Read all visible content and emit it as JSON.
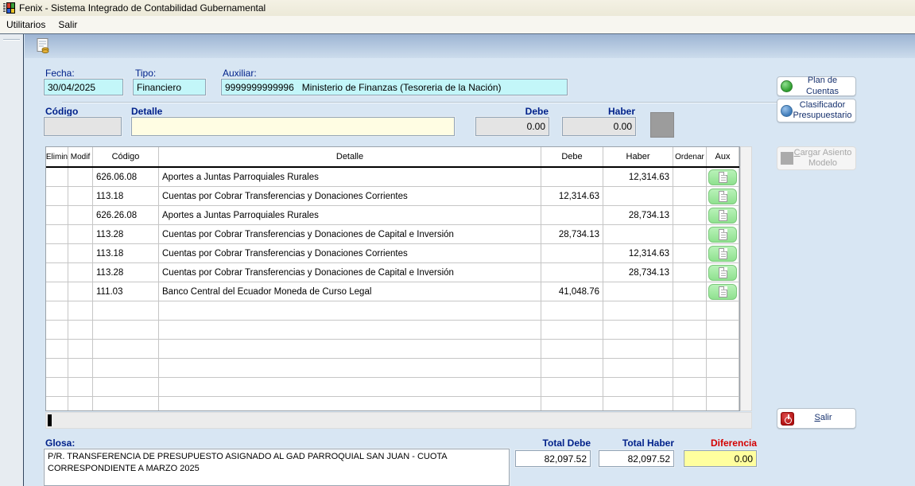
{
  "window": {
    "title": "Fenix - Sistema Integrado de Contabilidad Gubernamental"
  },
  "menu": {
    "items": [
      "Utilitarios",
      "Salir"
    ]
  },
  "form": {
    "fecha": {
      "label": "Fecha:",
      "value": "30/04/2025"
    },
    "tipo": {
      "label": "Tipo:",
      "value": "Financiero"
    },
    "auxiliar": {
      "label": "Auxiliar:",
      "value": "9999999999996   Ministerio de Finanzas (Tesoreria de la Nación)"
    },
    "codigo": {
      "label": "Código",
      "value": ""
    },
    "detalle": {
      "label": "Detalle",
      "value": ""
    },
    "debe": {
      "label": "Debe",
      "value": "0.00"
    },
    "haber": {
      "label": "Haber",
      "value": "0.00"
    }
  },
  "table": {
    "headers": [
      "Elimin",
      "Modif",
      "Código",
      "Detalle",
      "Debe",
      "Haber",
      "Ordenar",
      "Aux"
    ],
    "rows": [
      {
        "codigo": "626.06.08",
        "detalle": "Aportes a Juntas Parroquiales Rurales",
        "debe": "",
        "haber": "12,314.63"
      },
      {
        "codigo": "113.18",
        "detalle": "Cuentas por Cobrar Transferencias y Donaciones Corrientes",
        "debe": "12,314.63",
        "haber": ""
      },
      {
        "codigo": "626.26.08",
        "detalle": "Aportes a Juntas Parroquiales Rurales",
        "debe": "",
        "haber": "28,734.13"
      },
      {
        "codigo": "113.28",
        "detalle": "Cuentas por Cobrar Transferencias y Donaciones de Capital e Inversión",
        "debe": "28,734.13",
        "haber": ""
      },
      {
        "codigo": "113.18",
        "detalle": "Cuentas por Cobrar Transferencias y Donaciones Corrientes",
        "debe": "",
        "haber": "12,314.63"
      },
      {
        "codigo": "113.28",
        "detalle": "Cuentas por Cobrar Transferencias y Donaciones de Capital e Inversión",
        "debe": "",
        "haber": "28,734.13"
      },
      {
        "codigo": "111.03",
        "detalle": "Banco Central del Ecuador Moneda de Curso Legal",
        "debe": "41,048.76",
        "haber": ""
      }
    ],
    "empty_row_count": 6
  },
  "side_buttons": {
    "plan_cuentas": {
      "label": "Plan de Cuentas"
    },
    "clasificador": {
      "label": "Clasificador Presupuestario"
    },
    "cargar_modelo": {
      "label": "Cargar Asiento Modelo"
    },
    "salir": {
      "label": "Salir"
    }
  },
  "footer": {
    "glosa_label": "Glosa:",
    "glosa_text": "P/R. TRANSFERENCIA DE PRESUPUESTO ASIGNADO AL GAD PARROQUIAL SAN JUAN - CUOTA CORRESPONDIENTE A MARZO 2025",
    "total_debe": {
      "label": "Total Debe",
      "value": "82,097.52"
    },
    "total_haber": {
      "label": "Total Haber",
      "value": "82,097.52"
    },
    "diferencia": {
      "label": "Diferencia",
      "value": "0.00"
    }
  },
  "colors": {
    "label_navy": "#00218a",
    "diferencia_red": "#d40000",
    "field_cyan": "#c3f6f9",
    "field_pale_yellow": "#fffde3",
    "field_diff_yellow": "#ffff9e",
    "aux_button_green": "#8fe18f",
    "titlebar_cream": "#ece9d8",
    "form_background": "#d8e6f3"
  }
}
